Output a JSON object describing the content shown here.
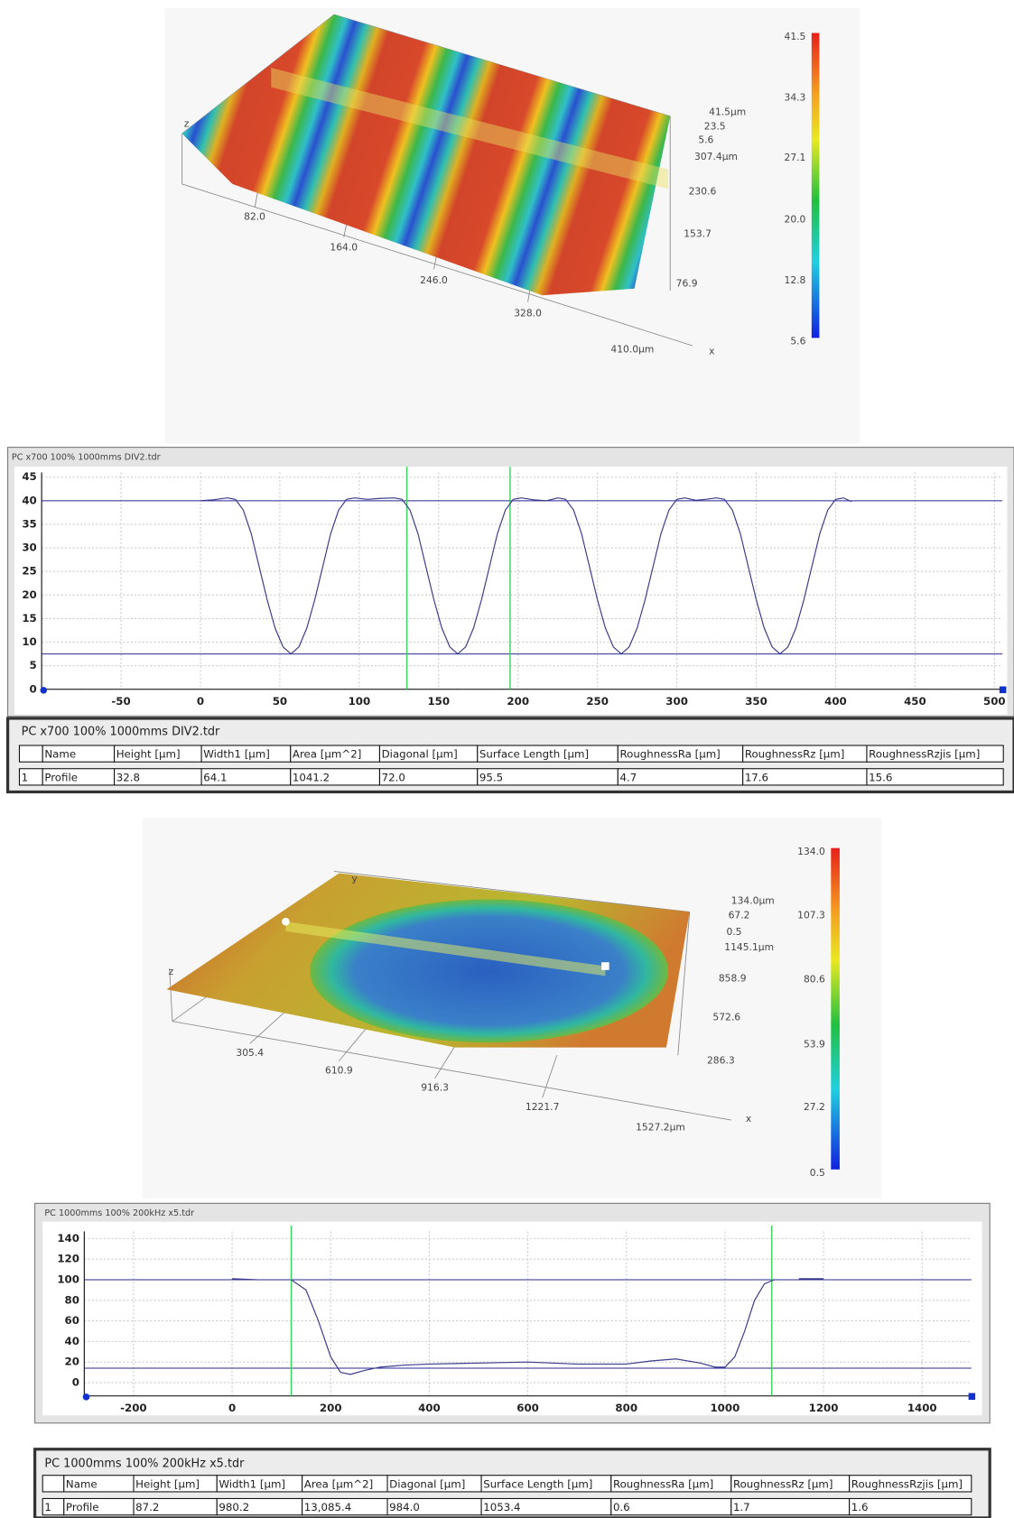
{
  "surface_views": [
    {
      "axis_x": "x",
      "axis_z": "z",
      "x_ticks": [
        "82.0",
        "164.0",
        "246.0",
        "328.0",
        "410.0µm"
      ],
      "y_ticks": [
        "307.4µm",
        "230.6",
        "153.7",
        "76.9"
      ],
      "z_ticks": [
        "41.5µm",
        "23.5",
        "5.6"
      ],
      "colorbar_ticks": [
        "41.5",
        "34.3",
        "27.1",
        "20.0",
        "12.8",
        "5.6"
      ]
    },
    {
      "axis_x": "x",
      "axis_y": "y",
      "axis_z": "z",
      "x_ticks": [
        "305.4",
        "610.9",
        "916.3",
        "1221.7",
        "1527.2µm"
      ],
      "y_ticks": [
        "1145.1µm",
        "858.9",
        "572.6",
        "286.3"
      ],
      "z_ticks": [
        "134.0µm",
        "67.2",
        "0.5"
      ],
      "colorbar_ticks": [
        "134.0",
        "107.3",
        "80.6",
        "53.9",
        "27.2",
        "0.5"
      ]
    }
  ],
  "chart_data": [
    {
      "type": "line",
      "title": "PC x700 100% 1000mms DIV2.tdr",
      "x": [
        0,
        8,
        17,
        22,
        27,
        32,
        37,
        42,
        47,
        52,
        57,
        62,
        67,
        72,
        77,
        82,
        87,
        92,
        97,
        105,
        113,
        122,
        127,
        132,
        137,
        142,
        147,
        152,
        157,
        162,
        167,
        172,
        177,
        182,
        187,
        192,
        197,
        202,
        210,
        218,
        225,
        230,
        235,
        240,
        245,
        250,
        255,
        260,
        265,
        270,
        275,
        280,
        285,
        290,
        295,
        300,
        305,
        312,
        318,
        325,
        330,
        335,
        340,
        345,
        350,
        355,
        360,
        365,
        370,
        375,
        380,
        385,
        390,
        395,
        400,
        405,
        410
      ],
      "series": [
        {
          "color": "#3b3b8c",
          "values": [
            40,
            40.2,
            40.6,
            40.3,
            38,
            33,
            26,
            19,
            13,
            9,
            7.5,
            9,
            13,
            19,
            26,
            33,
            38,
            40.3,
            40.6,
            40.3,
            40.5,
            40.6,
            40.3,
            38,
            33,
            26,
            19,
            13,
            9,
            7.5,
            9,
            13,
            19,
            26,
            33,
            38,
            40.3,
            40.6,
            40.2,
            40,
            40.6,
            40.3,
            38,
            33,
            26,
            19,
            13,
            9,
            7.5,
            9,
            13,
            19,
            26,
            33,
            38,
            40.3,
            40.6,
            40.1,
            40.3,
            40.6,
            40.3,
            38,
            33,
            26,
            19,
            13,
            9,
            7.5,
            9,
            13,
            19,
            26,
            33,
            38,
            40.3,
            40.6,
            39.8
          ]
        }
      ],
      "xlim": [
        -100,
        505
      ],
      "ylim": [
        0,
        46
      ],
      "xticks": [
        -50,
        0,
        50,
        100,
        150,
        200,
        250,
        300,
        350,
        400,
        450,
        500
      ],
      "yticks": [
        0,
        5,
        10,
        15,
        20,
        25,
        30,
        35,
        40,
        45
      ],
      "grid": true,
      "hlines": [
        40,
        7.5
      ],
      "hline_color": "#2a2a9a",
      "vlines": [
        130,
        195
      ],
      "vline_color": "#3ccf5a"
    },
    {
      "type": "line",
      "title": "PC 1000mms 100% 200kHz x5.tdr",
      "x": [
        0,
        50,
        80,
        120,
        150,
        175,
        200,
        220,
        240,
        270,
        300,
        350,
        400,
        500,
        600,
        700,
        800,
        850,
        900,
        950,
        980,
        1000,
        1020,
        1040,
        1060,
        1080,
        1100,
        1125,
        1150,
        1200
      ],
      "series": [
        {
          "color": "#3b3b8c",
          "values": [
            101,
            100,
            null,
            100,
            90,
            60,
            25,
            10,
            8,
            12,
            15,
            17,
            18,
            19,
            20,
            18,
            18,
            21,
            23,
            19,
            15,
            15,
            25,
            50,
            80,
            96,
            100,
            null,
            101,
            101
          ]
        }
      ],
      "xlim": [
        -300,
        1500
      ],
      "ylim": [
        -13,
        147
      ],
      "xticks": [
        -200,
        0,
        200,
        400,
        600,
        800,
        1000,
        1200,
        1400
      ],
      "yticks": [
        0,
        20,
        40,
        60,
        80,
        100,
        120,
        140
      ],
      "grid": true,
      "hlines": [
        100,
        14
      ],
      "hline_color": "#2a2a9a",
      "vlines": [
        120,
        1095
      ],
      "vline_color": "#3ccf5a"
    }
  ],
  "tables": [
    {
      "title": "PC x700 100% 1000mms DIV2.tdr",
      "columns": [
        "Name",
        "Height [μm]",
        "Width1 [μm]",
        "Area [μm^2]",
        "Diagonal [μm]",
        "Surface Length [μm]",
        "RoughnessRa [μm]",
        "RoughnessRz [μm]",
        "RoughnessRzjis [μm]"
      ],
      "rows": [
        [
          "1",
          "Profile",
          "32.8",
          "64.1",
          "1041.2",
          "72.0",
          "95.5",
          "4.7",
          "17.6",
          "15.6"
        ]
      ]
    },
    {
      "title": "PC 1000mms 100% 200kHz x5.tdr",
      "columns": [
        "Name",
        "Height [μm]",
        "Width1 [μm]",
        "Area [μm^2]",
        "Diagonal [μm]",
        "Surface Length [μm]",
        "RoughnessRa [μm]",
        "RoughnessRz [μm]",
        "RoughnessRzjis [μm]"
      ],
      "rows": [
        [
          "1",
          "Profile",
          "87.2",
          "980.2",
          "13,085.4",
          "984.0",
          "1053.4",
          "0.6",
          "1.7",
          "1.6"
        ]
      ]
    }
  ]
}
